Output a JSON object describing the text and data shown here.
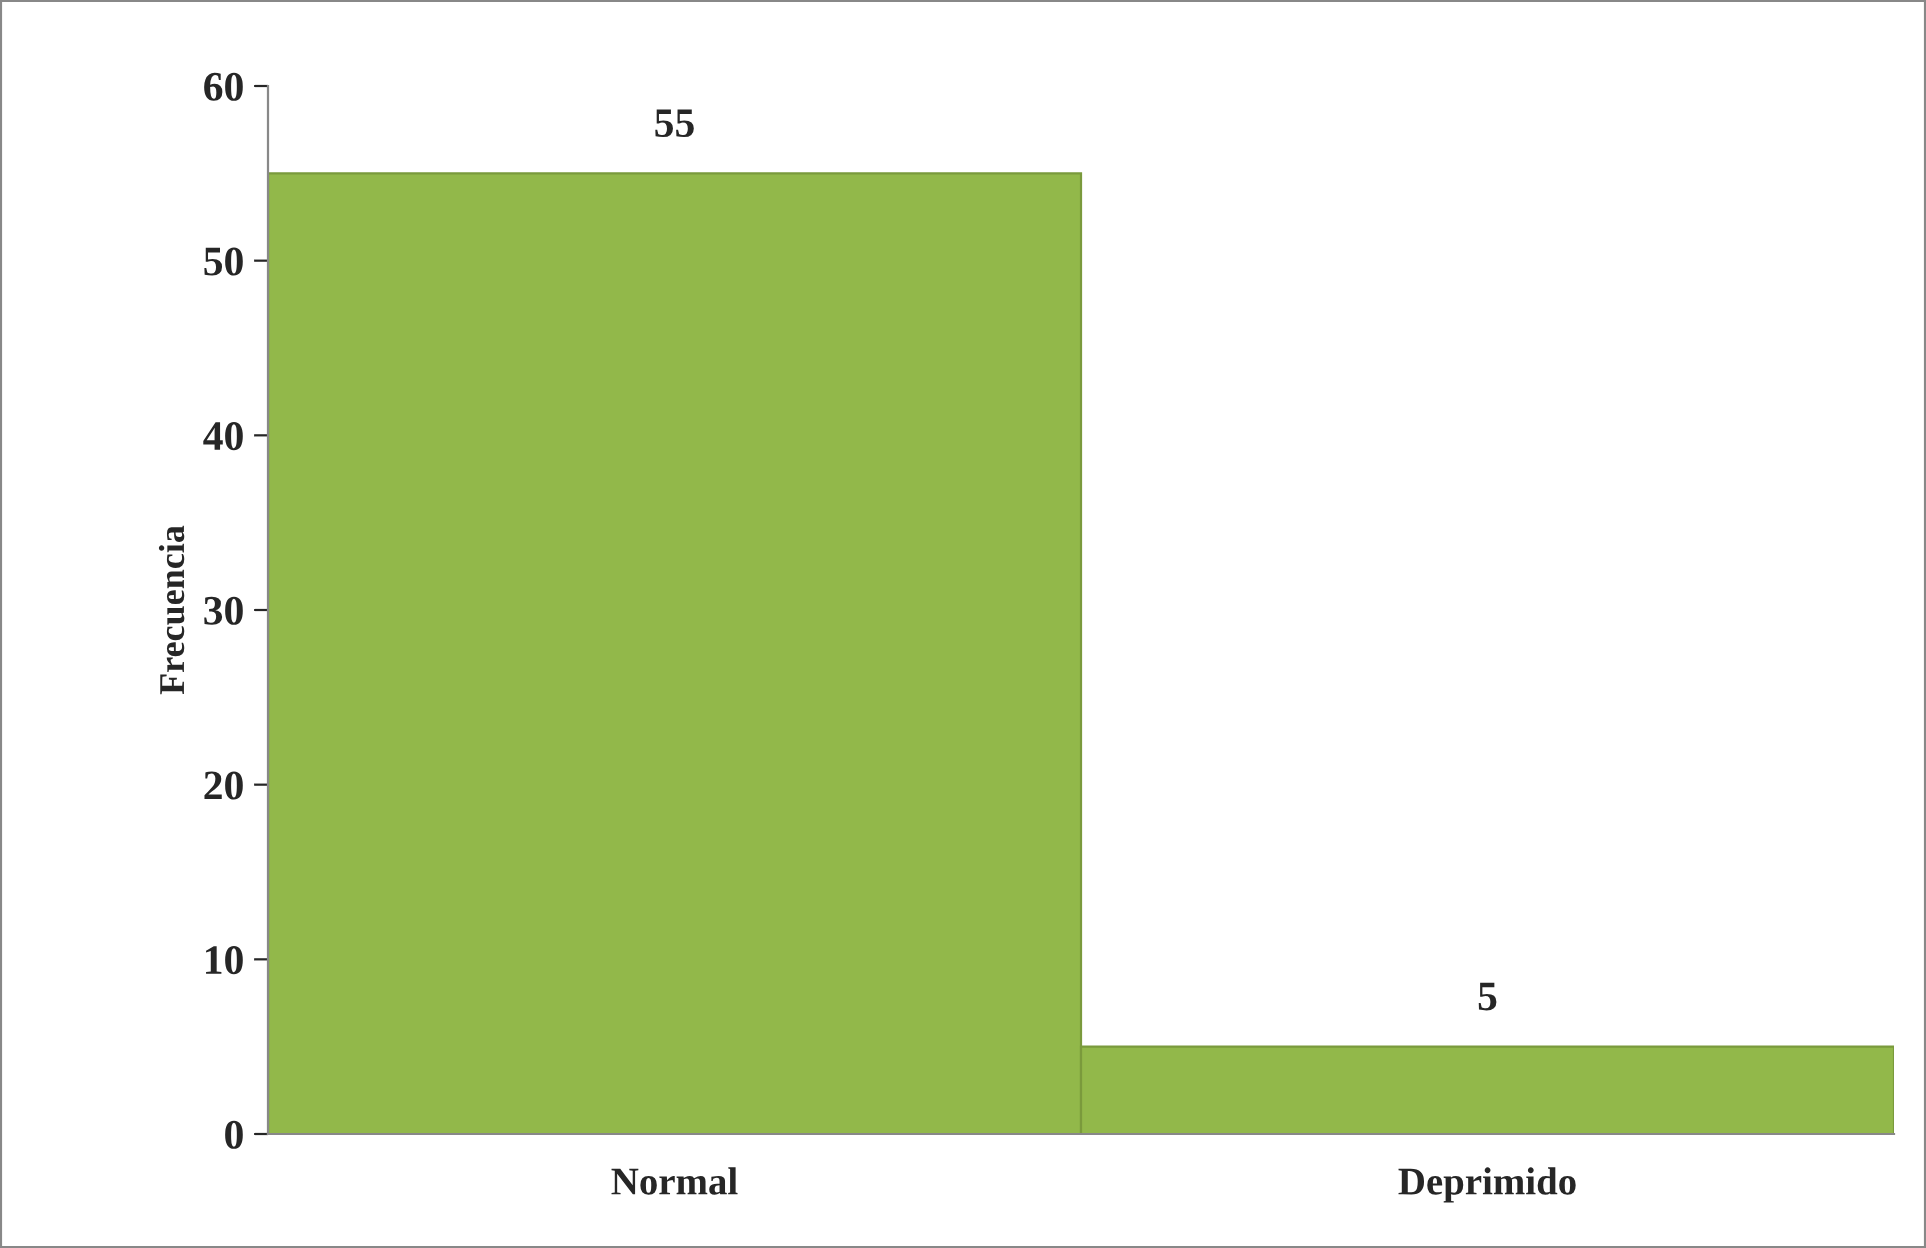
{
  "chart_data": {
    "type": "bar",
    "ylabel": "Frecuencia",
    "categories": [
      "Normal",
      "Deprimido"
    ],
    "values": [
      55,
      5
    ],
    "color": "#92b84a",
    "ylim": [
      0,
      60
    ],
    "yticks": [
      0,
      10,
      20,
      30,
      40,
      50,
      60
    ],
    "data_labels": true,
    "grid": false,
    "legend": false
  }
}
